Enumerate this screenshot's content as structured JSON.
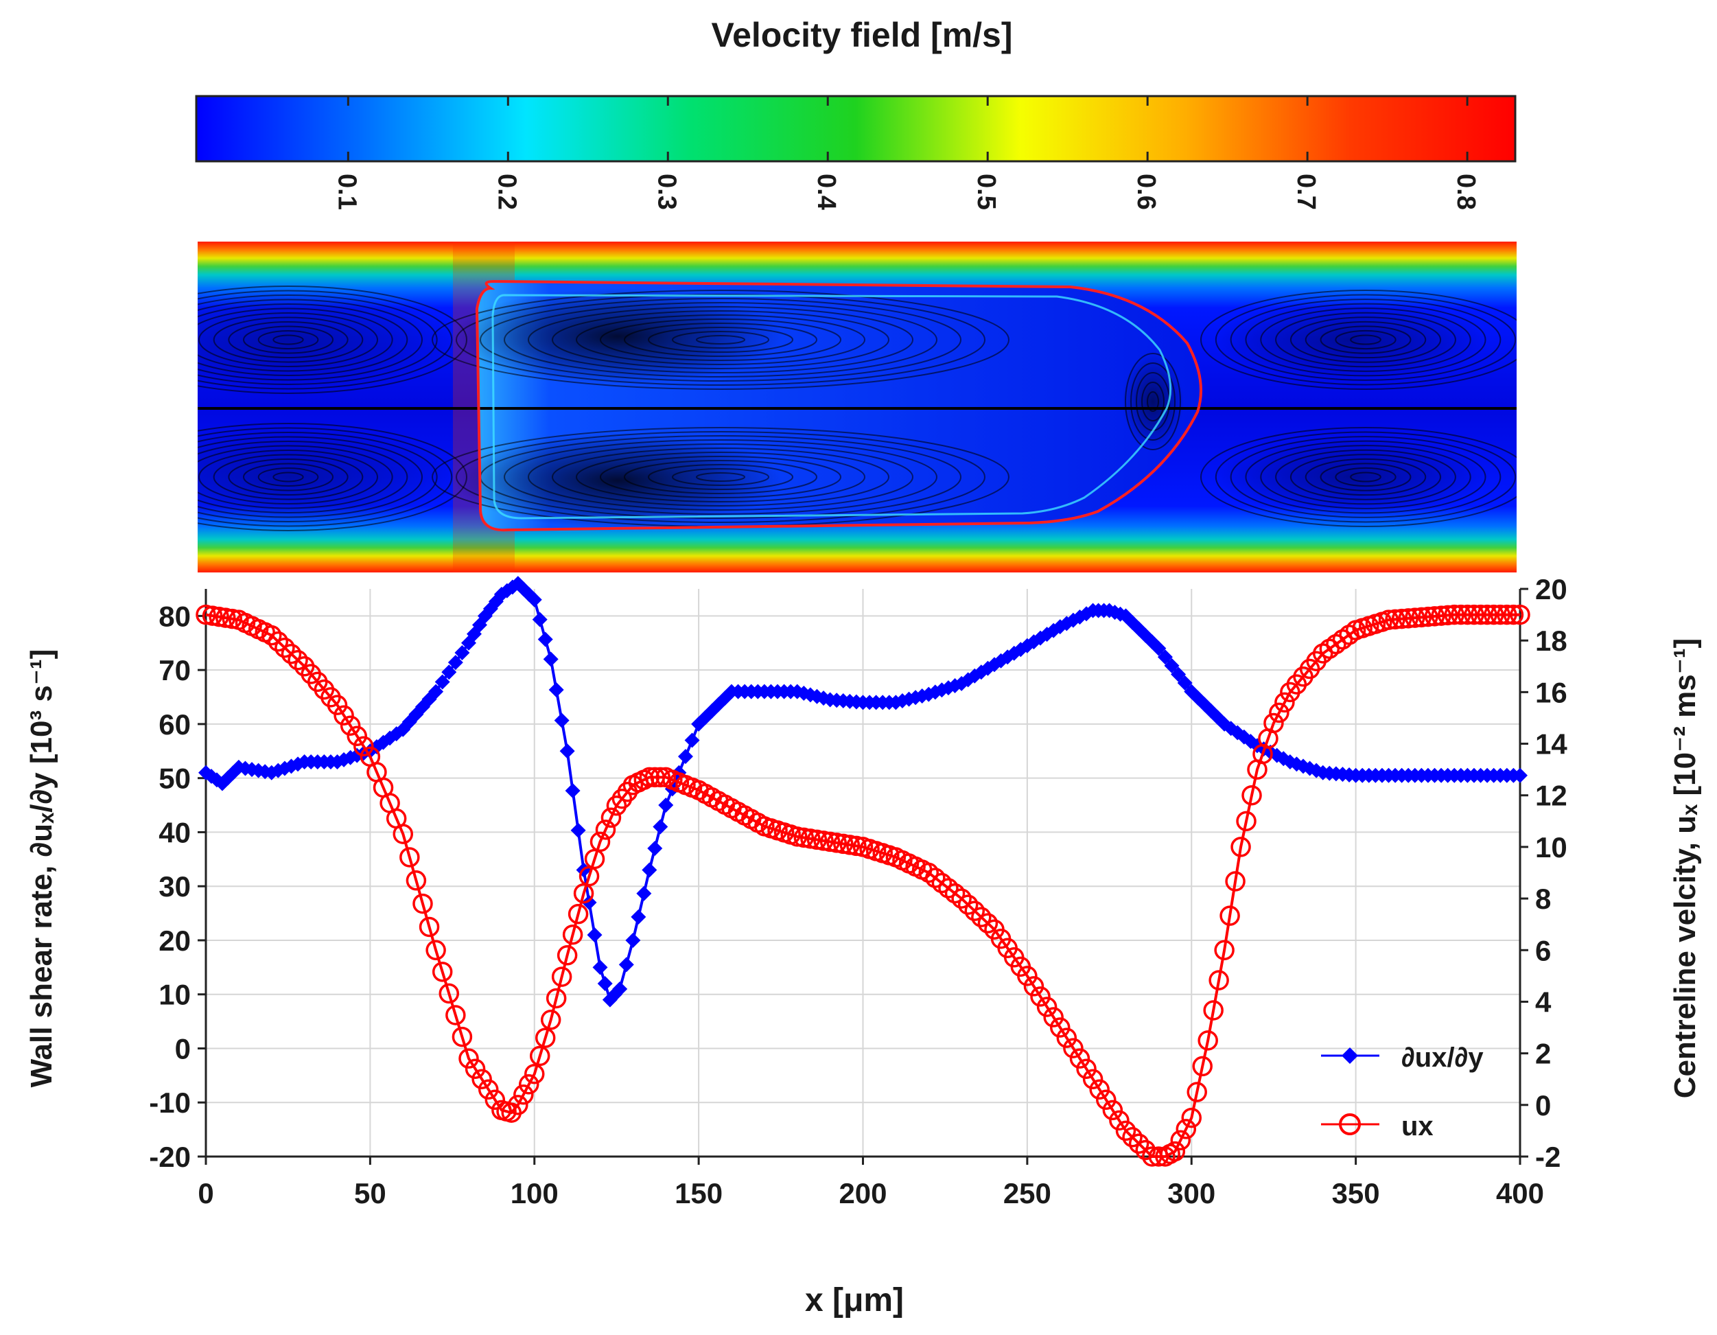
{
  "colorbar": {
    "title": "Velocity field [m/s]",
    "ticks": [
      "0.1",
      "0.2",
      "0.3",
      "0.4",
      "0.5",
      "0.6",
      "0.7",
      "0.8"
    ],
    "tick_values": [
      0.1,
      0.2,
      0.3,
      0.4,
      0.5,
      0.6,
      0.7,
      0.8
    ],
    "range": [
      0.005,
      0.83
    ],
    "stops": [
      "#0000ff",
      "#006cff",
      "#00e5ff",
      "#00e070",
      "#1fd21f",
      "#f5ff00",
      "#ffae00",
      "#ff3a00",
      "#ff0000"
    ]
  },
  "field": {
    "colors": {
      "wall": "#ff0000",
      "core": "#0000ee",
      "streamline": "#000000",
      "interface": "#ff2020"
    }
  },
  "chart_data": {
    "type": "line",
    "title": "",
    "xlabel": "x [μm]",
    "ylabel_left": "Wall shear rate, ∂uₓ/∂y [10³ s⁻¹]",
    "ylabel_right": "Centreline velcity, uₓ [10⁻² ms⁻¹]",
    "xlim": [
      0,
      400
    ],
    "ylim_left": [
      -20,
      85
    ],
    "ylim_right": [
      -2,
      20
    ],
    "xticks": [
      0,
      50,
      100,
      150,
      200,
      250,
      300,
      350,
      400
    ],
    "yticks_left": [
      -20,
      -10,
      0,
      10,
      20,
      30,
      40,
      50,
      60,
      70,
      80
    ],
    "yticks_right": [
      -2,
      0,
      2,
      4,
      6,
      8,
      10,
      12,
      14,
      16,
      18,
      20
    ],
    "grid": true,
    "legend_position": "bottom-right",
    "series": [
      {
        "name": "∂ux/∂y",
        "axis": "left",
        "color": "#0000ff",
        "marker": "diamond",
        "x": [
          0,
          5,
          10,
          20,
          30,
          40,
          50,
          60,
          70,
          80,
          85,
          90,
          95,
          100,
          105,
          110,
          115,
          120,
          123,
          126,
          130,
          135,
          140,
          150,
          160,
          170,
          180,
          190,
          200,
          210,
          220,
          230,
          240,
          250,
          260,
          270,
          275,
          280,
          290,
          300,
          310,
          320,
          330,
          340,
          350,
          360,
          370,
          380,
          390,
          400
        ],
        "y": [
          51,
          49,
          52,
          51,
          53,
          53,
          55,
          59,
          66,
          75,
          80,
          84,
          86,
          83,
          72,
          55,
          33,
          15,
          9,
          11,
          20,
          33,
          45,
          60,
          66,
          66,
          66,
          64.5,
          64,
          64,
          65.5,
          67.5,
          71,
          74.5,
          78,
          81,
          81,
          80,
          74,
          66,
          60,
          56,
          53,
          51,
          50.5,
          50.5,
          50.5,
          50.5,
          50.5,
          50.5
        ]
      },
      {
        "name": "ux",
        "axis": "right",
        "color": "#ff0000",
        "marker": "circle",
        "x": [
          0,
          10,
          20,
          30,
          40,
          50,
          60,
          70,
          80,
          90,
          93,
          95,
          100,
          105,
          110,
          115,
          120,
          125,
          130,
          135,
          140,
          150,
          160,
          170,
          180,
          190,
          200,
          210,
          220,
          230,
          240,
          250,
          260,
          270,
          280,
          288,
          292,
          295,
          300,
          305,
          310,
          315,
          320,
          325,
          330,
          340,
          350,
          360,
          370,
          380,
          390,
          400
        ],
        "y": [
          19,
          18.8,
          18.2,
          17,
          15.5,
          13.5,
          10.5,
          6,
          1.8,
          -0.2,
          -0.3,
          0,
          1.2,
          3.3,
          5.8,
          8.2,
          10.2,
          11.6,
          12.4,
          12.7,
          12.7,
          12.2,
          11.5,
          10.8,
          10.4,
          10.2,
          10,
          9.6,
          9,
          8,
          6.8,
          5,
          3,
          1,
          -1,
          -2,
          -2,
          -1.8,
          -0.5,
          2.5,
          6,
          10,
          13,
          14.8,
          16,
          17.5,
          18.4,
          18.8,
          18.9,
          19,
          19,
          19
        ]
      }
    ]
  }
}
